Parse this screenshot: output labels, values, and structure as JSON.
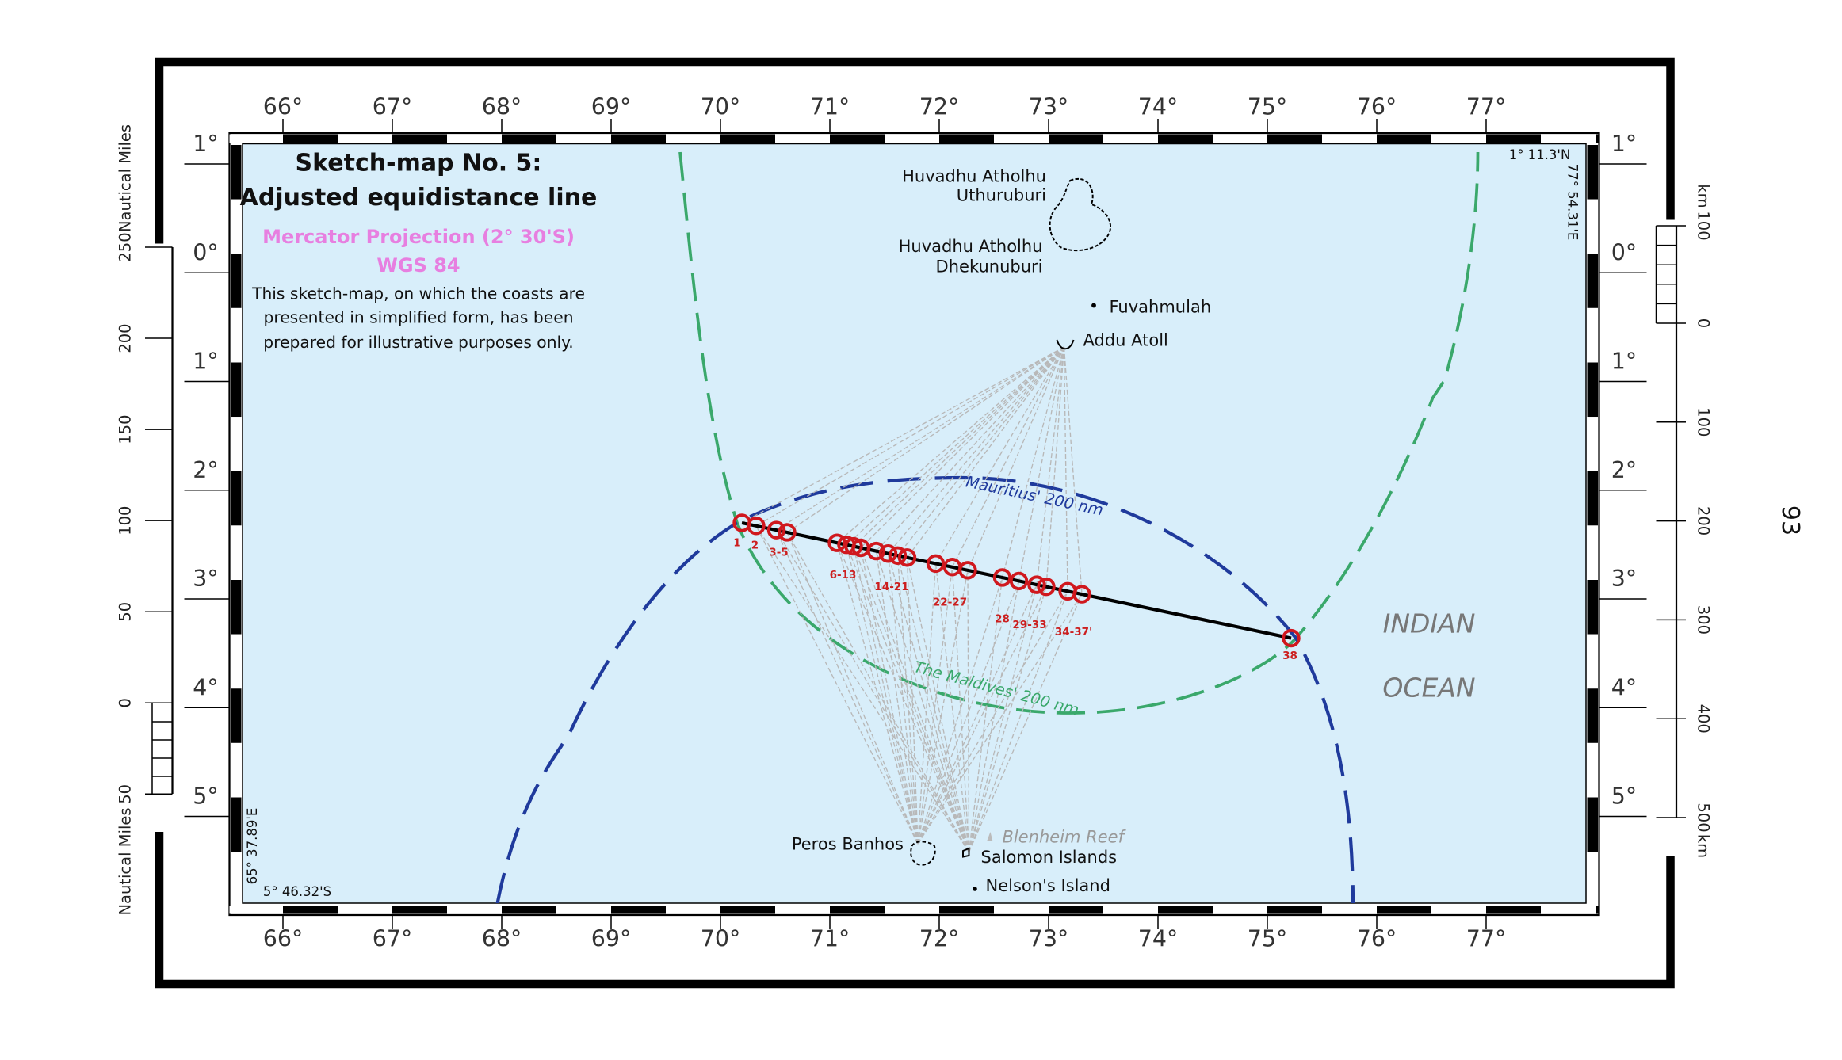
{
  "map": {
    "title": "Sketch-map No. 5:",
    "subtitle": "Adjusted equidistance line",
    "projection": "Mercator Projection (2° 30'S)",
    "datum": "WGS 84",
    "note": [
      "This sketch-map, on which the coasts are",
      "presented in simplified form, has been",
      "prepared for illustrative purposes only."
    ]
  },
  "longitude_labels": [
    "66°",
    "67°",
    "68°",
    "69°",
    "70°",
    "71°",
    "72°",
    "73°",
    "74°",
    "75°",
    "76°",
    "77°"
  ],
  "latitude_labels": [
    "1°",
    "0°",
    "1°",
    "2°",
    "3°",
    "4°",
    "5°"
  ],
  "corners": {
    "top_right_lat": "1° 11.3'N",
    "top_right_lon": "77° 54.31'E",
    "bottom_left_lon": "65° 37.89'E",
    "bottom_left_lat": "5° 46.32'S"
  },
  "nautical_scale": {
    "unit": "Nautical Miles",
    "labels": [
      "250",
      "200",
      "150",
      "100",
      "50",
      "0",
      "50"
    ]
  },
  "km_scale": {
    "unit": "km",
    "labels": [
      "100",
      "0",
      "100",
      "200",
      "300",
      "400",
      "500"
    ]
  },
  "page_number": "93",
  "places": {
    "huvadhu_north": [
      "Huvadhu Atholhu",
      "Uthuruburi"
    ],
    "huvadhu_south": [
      "Huvadhu Atholhu",
      "Dhekunuburi"
    ],
    "fuvahmulah": "Fuvahmulah",
    "addu": "Addu Atoll",
    "peros_banhos": "Peros Banhos",
    "blenheim_reef": "Blenheim Reef",
    "salomon": "Salomon Islands",
    "nelson": "Nelson's Island"
  },
  "ocean": [
    "INDIAN",
    "OCEAN"
  ],
  "limits": {
    "mauritius": "Mauritius' 200 nm",
    "maldives": "The Maldives' 200 nm"
  },
  "turning_point_labels": [
    "1",
    "2",
    "3-5",
    "6-13",
    "14-21",
    "22-27",
    "28",
    "29-33",
    "34-37'",
    "38"
  ]
}
